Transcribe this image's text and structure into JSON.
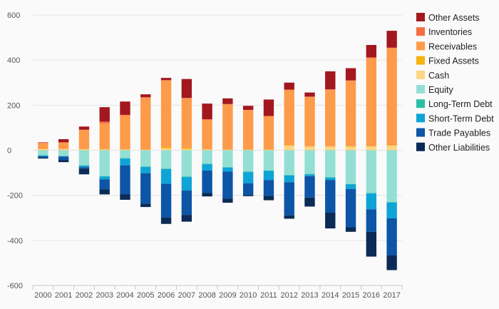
{
  "chart_data": {
    "type": "bar",
    "stacked": true,
    "categories": [
      "2000",
      "2001",
      "2002",
      "2003",
      "2004",
      "2005",
      "2006",
      "2007",
      "2008",
      "2009",
      "2010",
      "2011",
      "2012",
      "2013",
      "2014",
      "2015",
      "2016",
      "2017"
    ],
    "ylim": [
      -600,
      600
    ],
    "yticks": [
      600,
      400,
      200,
      0,
      -200,
      -400,
      -600
    ],
    "ytick_labels": [
      "600",
      "400",
      "200",
      "0",
      "-200",
      "-400",
      "-600"
    ],
    "grid": true,
    "legend_position": "right",
    "title": "",
    "xlabel": "",
    "ylabel": "",
    "positive_series": [
      {
        "name": "Cash",
        "color": "#fcd585",
        "values": [
          5,
          5,
          4,
          3,
          3,
          2,
          8,
          5,
          3,
          2,
          2,
          2,
          20,
          16,
          16,
          16,
          16,
          20
        ]
      },
      {
        "name": "Fixed Assets",
        "color": "#f6b20f",
        "values": [
          1,
          1,
          1,
          1,
          1,
          1,
          6,
          5,
          1,
          1,
          1,
          1,
          2,
          2,
          2,
          2,
          2,
          2
        ]
      },
      {
        "name": "Receivables",
        "color": "#fd9b4a",
        "values": [
          26,
          28,
          85,
          115,
          150,
          230,
          295,
          220,
          132,
          200,
          175,
          148,
          245,
          218,
          250,
          290,
          390,
          430
        ]
      },
      {
        "name": "Inventories",
        "color": "#f36f3e",
        "values": [
          1,
          1,
          1,
          8,
          3,
          2,
          2,
          2,
          1,
          2,
          1,
          1,
          2,
          2,
          2,
          2,
          4,
          3
        ]
      },
      {
        "name": "Other Assets",
        "color": "#a3171f",
        "values": [
          2,
          14,
          14,
          64,
          59,
          13,
          10,
          84,
          70,
          25,
          18,
          73,
          31,
          18,
          80,
          54,
          55,
          75
        ]
      }
    ],
    "negative_series": [
      {
        "name": "Equity",
        "color": "#93dfd3",
        "values": [
          -22,
          -25,
          -67,
          -115,
          -35,
          -72,
          -82,
          -117,
          -60,
          -75,
          -95,
          -90,
          -110,
          -105,
          -120,
          -150,
          -190,
          -230
        ]
      },
      {
        "name": "Long-Term Debt",
        "color": "#2bbfa6",
        "values": [
          -1,
          -1,
          -1,
          -2,
          -2,
          -2,
          -2,
          -2,
          -2,
          -2,
          -2,
          -2,
          -2,
          -2,
          -2,
          -2,
          -2,
          -2
        ]
      },
      {
        "name": "Short-Term Debt",
        "color": "#0fa4d6",
        "values": [
          -4,
          -2,
          -7,
          -12,
          -30,
          -28,
          -65,
          -60,
          -28,
          -18,
          -50,
          -40,
          -30,
          -8,
          -10,
          -20,
          -70,
          -70
        ]
      },
      {
        "name": "Trade Payables",
        "color": "#0d55a6",
        "values": [
          -5,
          -15,
          -7,
          -45,
          -128,
          -135,
          -150,
          -108,
          -100,
          -120,
          -52,
          -70,
          -147,
          -95,
          -145,
          -170,
          -100,
          -165
        ]
      },
      {
        "name": "Other Liabilities",
        "color": "#0b2b56",
        "values": [
          -5,
          -10,
          -25,
          -22,
          -25,
          -15,
          -28,
          -30,
          -15,
          -18,
          -5,
          -20,
          -15,
          -40,
          -70,
          -20,
          -110,
          -65
        ]
      }
    ],
    "legend": [
      "Other Assets",
      "Inventories",
      "Receivables",
      "Fixed Assets",
      "Cash",
      "Equity",
      "Long-Term Debt",
      "Short-Term Debt",
      "Trade Payables",
      "Other Liabilities"
    ]
  }
}
